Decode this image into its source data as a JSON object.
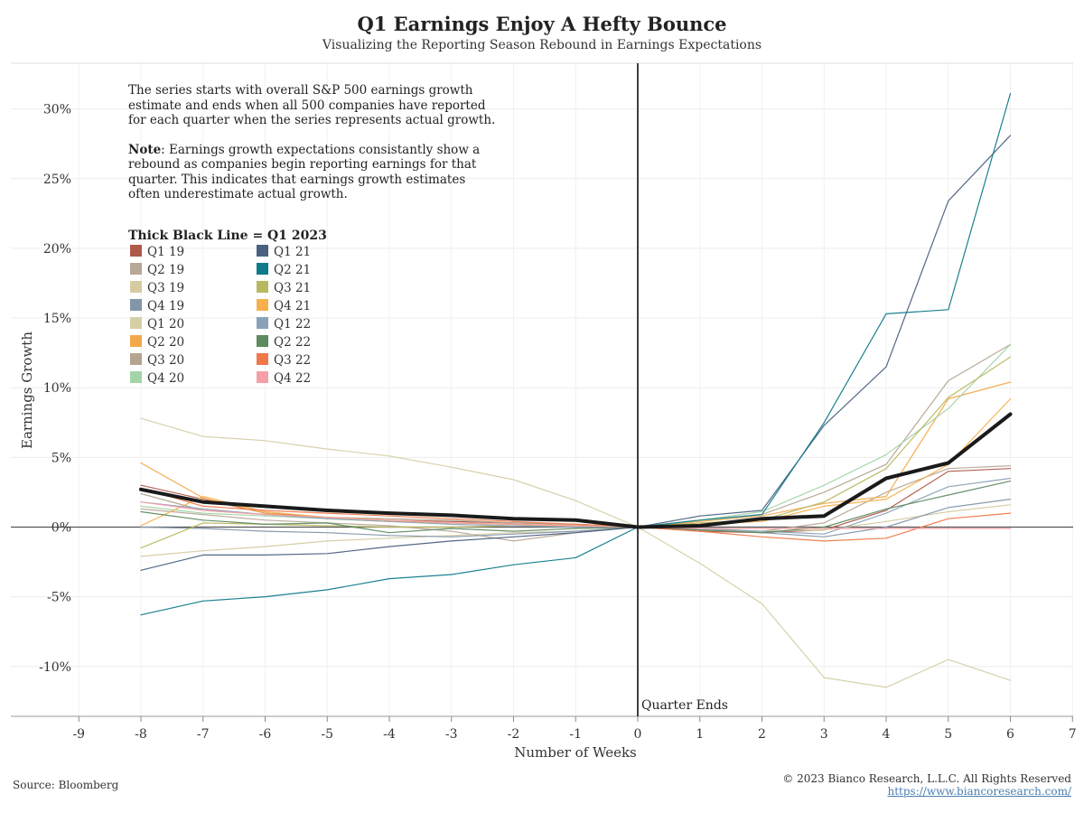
{
  "title": "Q1 Earnings Enjoy A Hefty Bounce",
  "subtitle": "Visualizing the Reporting Season Rebound in Earnings Expectations",
  "note": {
    "para1": "The series starts with overall S&P 500 earnings growth estimate and ends when all 500 companies have reported for each quarter when the series represents actual growth.",
    "note_bold": "Note",
    "para2": ": Earnings growth expectations consistantly show a rebound as companies begin reporting earnings for that quarter. This indicates that earnings growth estimates often underestimate actual growth."
  },
  "legend_title": "Thick Black Line = Q1 2023",
  "annotation": "Quarter Ends",
  "source": "Source: Bloomberg",
  "copyright": "© 2023 Bianco Research, L.L.C. All Rights Reserved",
  "url": "https://www.biancoresearch.com/",
  "chart_data": {
    "type": "line",
    "title": "Q1 Earnings Enjoy A Hefty Bounce",
    "subtitle": "Visualizing the Reporting Season Rebound in Earnings Expectations",
    "xlabel": "Number of Weeks",
    "ylabel": "Earnings Growth",
    "xlim": [
      -9,
      7
    ],
    "ylim": [
      -13.5,
      33
    ],
    "x_ticks": [
      -9,
      -8,
      -7,
      -6,
      -5,
      -4,
      -3,
      -2,
      -1,
      0,
      1,
      2,
      3,
      4,
      5,
      6,
      7
    ],
    "y_ticks": [
      -10,
      -5,
      0,
      5,
      10,
      15,
      20,
      25,
      30
    ],
    "y_tick_labels": [
      "-10%",
      "-5%",
      "0%",
      "5%",
      "10%",
      "15%",
      "20%",
      "25%",
      "30%"
    ],
    "grid": true,
    "legend_position": "top-left",
    "x": [
      -8,
      -7,
      -6,
      -5,
      -4,
      -3,
      -2,
      -1,
      0,
      1,
      2,
      3,
      4,
      5,
      6
    ],
    "series": [
      {
        "name": "Q1 19",
        "color": "#b05a4a",
        "values": [
          3.0,
          2.0,
          1.0,
          0.7,
          0.5,
          0.4,
          0.3,
          0.2,
          0.0,
          -0.3,
          -0.4,
          -0.2,
          1.2,
          4.0,
          4.2
        ]
      },
      {
        "name": "Q2 19",
        "color": "#b8a898",
        "values": [
          1.3,
          0.9,
          0.5,
          0.3,
          0.1,
          -0.3,
          -1.0,
          -0.4,
          0.0,
          -0.2,
          -0.3,
          0.3,
          2.5,
          4.2,
          4.4
        ]
      },
      {
        "name": "Q3 19",
        "color": "#d4cba0",
        "values": [
          -2.1,
          -1.7,
          -1.4,
          -1.0,
          -0.8,
          -0.6,
          -0.4,
          -0.3,
          0.0,
          -0.2,
          -0.3,
          -0.2,
          0.4,
          1.1,
          1.6
        ]
      },
      {
        "name": "Q4 19",
        "color": "#8296aa",
        "values": [
          0.0,
          -0.1,
          -0.3,
          -0.4,
          -0.6,
          -0.7,
          -0.5,
          -0.3,
          0.0,
          -0.2,
          -0.4,
          -0.7,
          0.0,
          1.4,
          2.0
        ]
      },
      {
        "name": "Q1 20",
        "color": "#d6cfa6",
        "values": [
          7.8,
          6.5,
          6.2,
          5.6,
          5.1,
          4.3,
          3.4,
          1.9,
          0.0,
          -2.6,
          -5.5,
          -10.8,
          -11.5,
          -9.5,
          -11.0
        ]
      },
      {
        "name": "Q2 20",
        "color": "#f2a94a",
        "values": [
          4.6,
          2.1,
          1.0,
          0.6,
          0.4,
          0.3,
          0.2,
          0.1,
          0.0,
          0.4,
          0.8,
          1.7,
          2.2,
          9.2,
          10.4
        ]
      },
      {
        "name": "Q3 20",
        "color": "#b4a490",
        "values": [
          2.4,
          1.2,
          0.9,
          0.7,
          0.6,
          0.5,
          0.3,
          0.2,
          0.0,
          0.5,
          0.9,
          2.5,
          4.5,
          10.5,
          13.1
        ]
      },
      {
        "name": "Q4 20",
        "color": "#a3d4a8",
        "values": [
          1.5,
          1.0,
          0.8,
          0.6,
          0.5,
          0.3,
          0.2,
          0.1,
          0.0,
          0.5,
          1.1,
          3.0,
          5.2,
          8.5,
          13.1
        ]
      },
      {
        "name": "Q1 21",
        "color": "#4a6080",
        "values": [
          -3.1,
          -2.0,
          -2.0,
          -1.9,
          -1.4,
          -1.0,
          -0.7,
          -0.4,
          0.0,
          0.8,
          1.2,
          7.3,
          11.5,
          23.4,
          28.1
        ]
      },
      {
        "name": "Q2 21",
        "color": "#0f7a8a",
        "values": [
          -6.3,
          -5.3,
          -5.0,
          -4.5,
          -3.7,
          -3.4,
          -2.7,
          -2.2,
          0.0,
          0.5,
          0.9,
          7.5,
          15.3,
          15.6,
          31.1
        ]
      },
      {
        "name": "Q3 21",
        "color": "#b8b860",
        "values": [
          -1.5,
          0.3,
          0.2,
          0.1,
          0.0,
          0.0,
          0.1,
          0.1,
          0.0,
          0.3,
          0.5,
          1.8,
          4.2,
          9.3,
          12.2
        ]
      },
      {
        "name": "Q4 21",
        "color": "#f5b04d",
        "values": [
          0.1,
          2.2,
          1.1,
          0.7,
          0.5,
          0.3,
          0.2,
          0.1,
          0.0,
          0.2,
          0.4,
          1.5,
          2.0,
          4.5,
          9.2
        ]
      },
      {
        "name": "Q1 22",
        "color": "#8aa2b8",
        "values": [
          1.8,
          1.3,
          0.9,
          0.6,
          0.4,
          0.2,
          0.1,
          0.0,
          0.0,
          -0.1,
          -0.3,
          -0.5,
          1.0,
          2.9,
          3.5
        ]
      },
      {
        "name": "Q2 22",
        "color": "#5e8a60",
        "values": [
          1.1,
          0.5,
          0.2,
          0.3,
          -0.4,
          -0.1,
          -0.3,
          -0.1,
          0.0,
          -0.2,
          -0.4,
          0.0,
          1.3,
          2.3,
          3.3
        ]
      },
      {
        "name": "Q3 22",
        "color": "#f07848",
        "values": [
          2.8,
          1.5,
          1.2,
          1.0,
          0.8,
          0.6,
          0.4,
          0.2,
          0.0,
          -0.3,
          -0.7,
          -1.0,
          -0.8,
          0.6,
          1.0
        ]
      },
      {
        "name": "Q4 22",
        "color": "#f5a0a8",
        "values": [
          1.8,
          1.2,
          0.9,
          0.7,
          0.5,
          0.3,
          0.2,
          0.1,
          0.0,
          -0.1,
          -0.1,
          -0.1,
          -0.1,
          -0.1,
          -0.1
        ]
      },
      {
        "name": "Q1 2023",
        "color": "#1a1a1a",
        "thick": true,
        "in_legend": false,
        "x": [
          -8,
          -7,
          -6,
          -5,
          -4,
          -3,
          -2,
          -1,
          0,
          1,
          2,
          3,
          4,
          5,
          6
        ],
        "values": [
          2.7,
          1.8,
          1.5,
          1.2,
          1.0,
          0.85,
          0.6,
          0.5,
          0.0,
          0.1,
          0.6,
          0.8,
          3.5,
          4.6,
          8.1
        ]
      }
    ]
  }
}
